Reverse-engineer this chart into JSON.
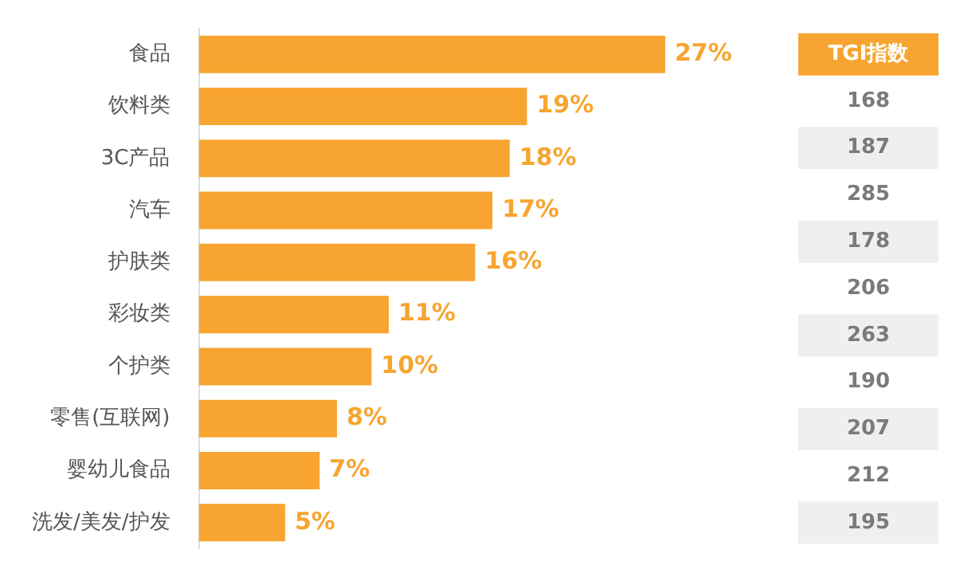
{
  "chart_data": {
    "type": "bar",
    "orientation": "horizontal",
    "categories": [
      "食品",
      "饮料类",
      "3C产品",
      "汽车",
      "护肤类",
      "彩妆类",
      "个护类",
      "零售(互联网)",
      "婴幼儿食品",
      "洗发/美发/护发"
    ],
    "values": [
      27,
      19,
      18,
      17,
      16,
      11,
      10,
      8,
      7,
      5
    ],
    "value_labels": [
      "27%",
      "19%",
      "18%",
      "17%",
      "16%",
      "11%",
      "10%",
      "8%",
      "7%",
      "5%"
    ],
    "color": "#f7a530",
    "tick_labels": "y",
    "annotations": [
      "TGI指数",
      "168",
      "187",
      "285",
      "178",
      "206",
      "263",
      "190",
      "207",
      "212",
      "195"
    ]
  }
}
